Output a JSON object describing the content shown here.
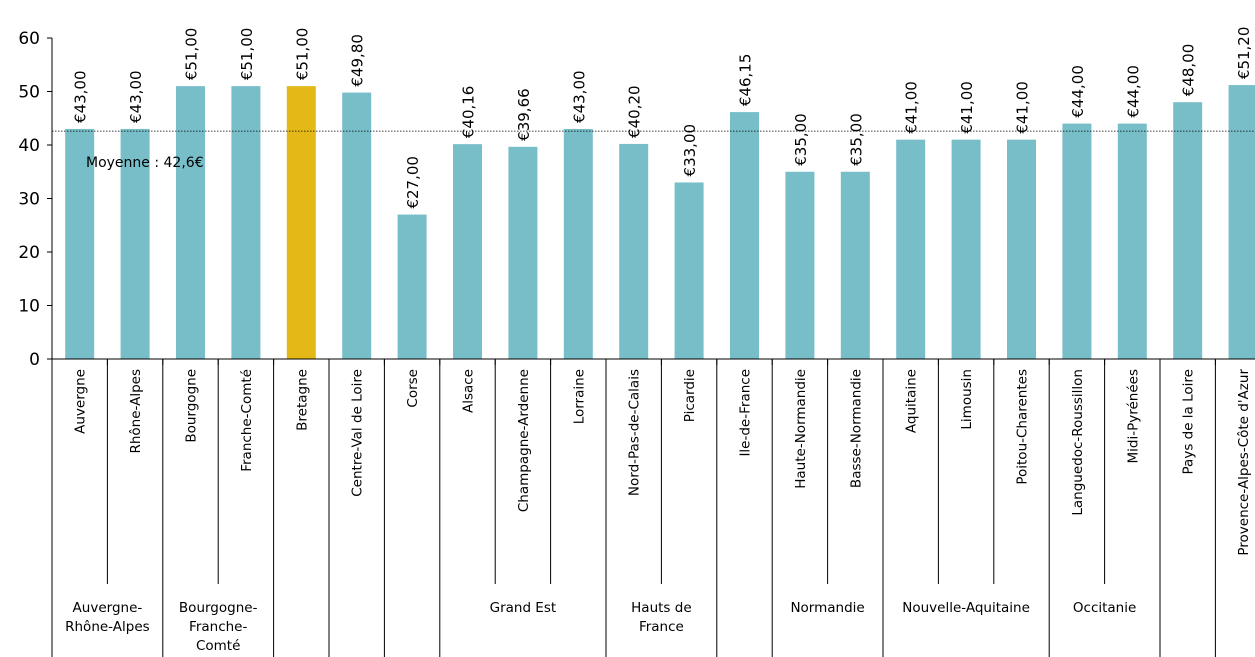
{
  "chart_data": {
    "type": "bar",
    "ylim": [
      0,
      60
    ],
    "yticks": [
      "0",
      "10",
      "20",
      "30",
      "40",
      "50",
      "60"
    ],
    "categories": [
      "Auvergne",
      "Rhône-Alpes",
      "Bourgogne",
      "Franche-Comté",
      "Bretagne",
      "Centre-Val de Loire",
      "Corse",
      "Alsace",
      "Champagne-Ardenne",
      "Lorraine",
      "Nord-Pas-de-Calais",
      "Picardie",
      "Ile-de-France",
      "Haute-Normandie",
      "Basse-Normandie",
      "Aquitaine",
      "Limousin",
      "Poitou-Charentes",
      "Languedoc-Roussillon",
      "Midi-Pyrénées",
      "Pays de la Loire",
      "Provence-Alpes-Côte d'Azur"
    ],
    "values": [
      43.0,
      43.0,
      51.0,
      51.0,
      51.0,
      49.8,
      27.0,
      40.16,
      39.66,
      43.0,
      40.2,
      33.0,
      46.15,
      35.0,
      35.0,
      41.0,
      41.0,
      41.0,
      44.0,
      44.0,
      48.0,
      51.2
    ],
    "value_labels": [
      "€43,00",
      "€43,00",
      "€51,00",
      "€51,00",
      "€51,00",
      "€49,80",
      "€27,00",
      "€40,16",
      "€39,66",
      "€43,00",
      "€40,20",
      "€33,00",
      "€46,15",
      "€35,00",
      "€35,00",
      "€41,00",
      "€41,00",
      "€41,00",
      "€44,00",
      "€44,00",
      "€48,00",
      "€51,20"
    ],
    "highlight_index": 4,
    "colors": {
      "bar": "#77bec9",
      "highlight": "#e3b817",
      "average_line": "#000000"
    },
    "average": {
      "value": 42.6,
      "label": "Moyenne : 42,6€"
    },
    "groups": [
      {
        "lines": [
          "Auvergne-",
          "Rhône-Alpes"
        ],
        "start": 0,
        "end": 1
      },
      {
        "lines": [
          "Bourgogne-",
          "Franche-",
          "Comté"
        ],
        "start": 2,
        "end": 3
      },
      {
        "lines": [],
        "start": 4,
        "end": 4
      },
      {
        "lines": [],
        "start": 5,
        "end": 5
      },
      {
        "lines": [],
        "start": 6,
        "end": 6
      },
      {
        "lines": [
          "Grand Est"
        ],
        "start": 7,
        "end": 9
      },
      {
        "lines": [
          "Hauts de",
          "France"
        ],
        "start": 10,
        "end": 11
      },
      {
        "lines": [],
        "start": 12,
        "end": 12
      },
      {
        "lines": [
          "Normandie"
        ],
        "start": 13,
        "end": 14
      },
      {
        "lines": [
          "Nouvelle-Aquitaine"
        ],
        "start": 15,
        "end": 17
      },
      {
        "lines": [
          "Occitanie"
        ],
        "start": 18,
        "end": 19
      },
      {
        "lines": [],
        "start": 20,
        "end": 20
      },
      {
        "lines": [],
        "start": 21,
        "end": 21
      }
    ],
    "grid": false,
    "legend": "none"
  }
}
